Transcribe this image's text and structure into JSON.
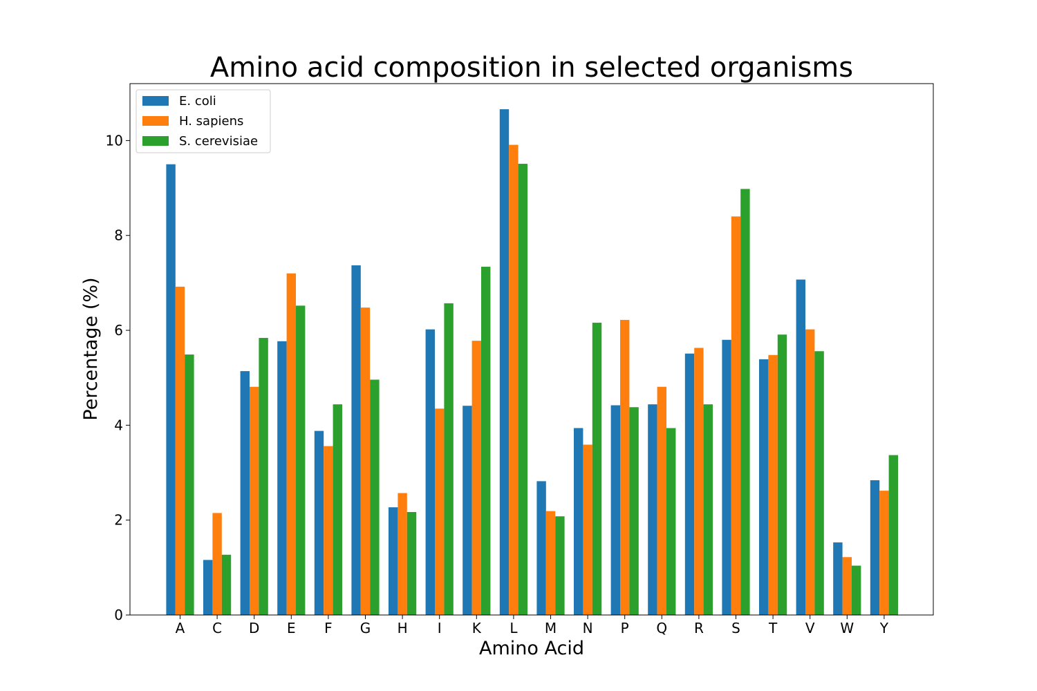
{
  "chart_data": {
    "type": "bar",
    "title": "Amino acid composition in selected organisms",
    "xlabel": "Amino Acid",
    "ylabel": "Percentage (%)",
    "ylim": [
      0,
      11.2
    ],
    "yticks": [
      0,
      2,
      4,
      6,
      8,
      10
    ],
    "legend_position": "top-left",
    "grid": false,
    "categories": [
      "A",
      "C",
      "D",
      "E",
      "F",
      "G",
      "H",
      "I",
      "K",
      "L",
      "M",
      "N",
      "P",
      "Q",
      "R",
      "S",
      "T",
      "V",
      "W",
      "Y"
    ],
    "series": [
      {
        "name": "E. coli",
        "color": "#1f77b4",
        "values": [
          9.5,
          1.16,
          5.14,
          5.77,
          3.88,
          7.37,
          2.27,
          6.02,
          4.41,
          10.66,
          2.82,
          3.94,
          4.42,
          4.44,
          5.51,
          5.8,
          5.39,
          7.07,
          1.53,
          2.84
        ]
      },
      {
        "name": "H. sapiens",
        "color": "#ff7f0e",
        "values": [
          6.92,
          2.15,
          4.81,
          7.2,
          3.56,
          6.48,
          2.57,
          4.35,
          5.78,
          9.91,
          2.19,
          3.59,
          6.22,
          4.81,
          5.63,
          8.4,
          5.48,
          6.02,
          1.22,
          2.62
        ]
      },
      {
        "name": "S. cerevisiae",
        "color": "#2ca02c",
        "values": [
          5.49,
          1.27,
          5.84,
          6.52,
          4.44,
          4.96,
          2.17,
          6.57,
          7.34,
          9.51,
          2.08,
          6.16,
          4.38,
          3.94,
          4.44,
          8.98,
          5.91,
          5.56,
          1.04,
          3.37
        ]
      }
    ]
  }
}
